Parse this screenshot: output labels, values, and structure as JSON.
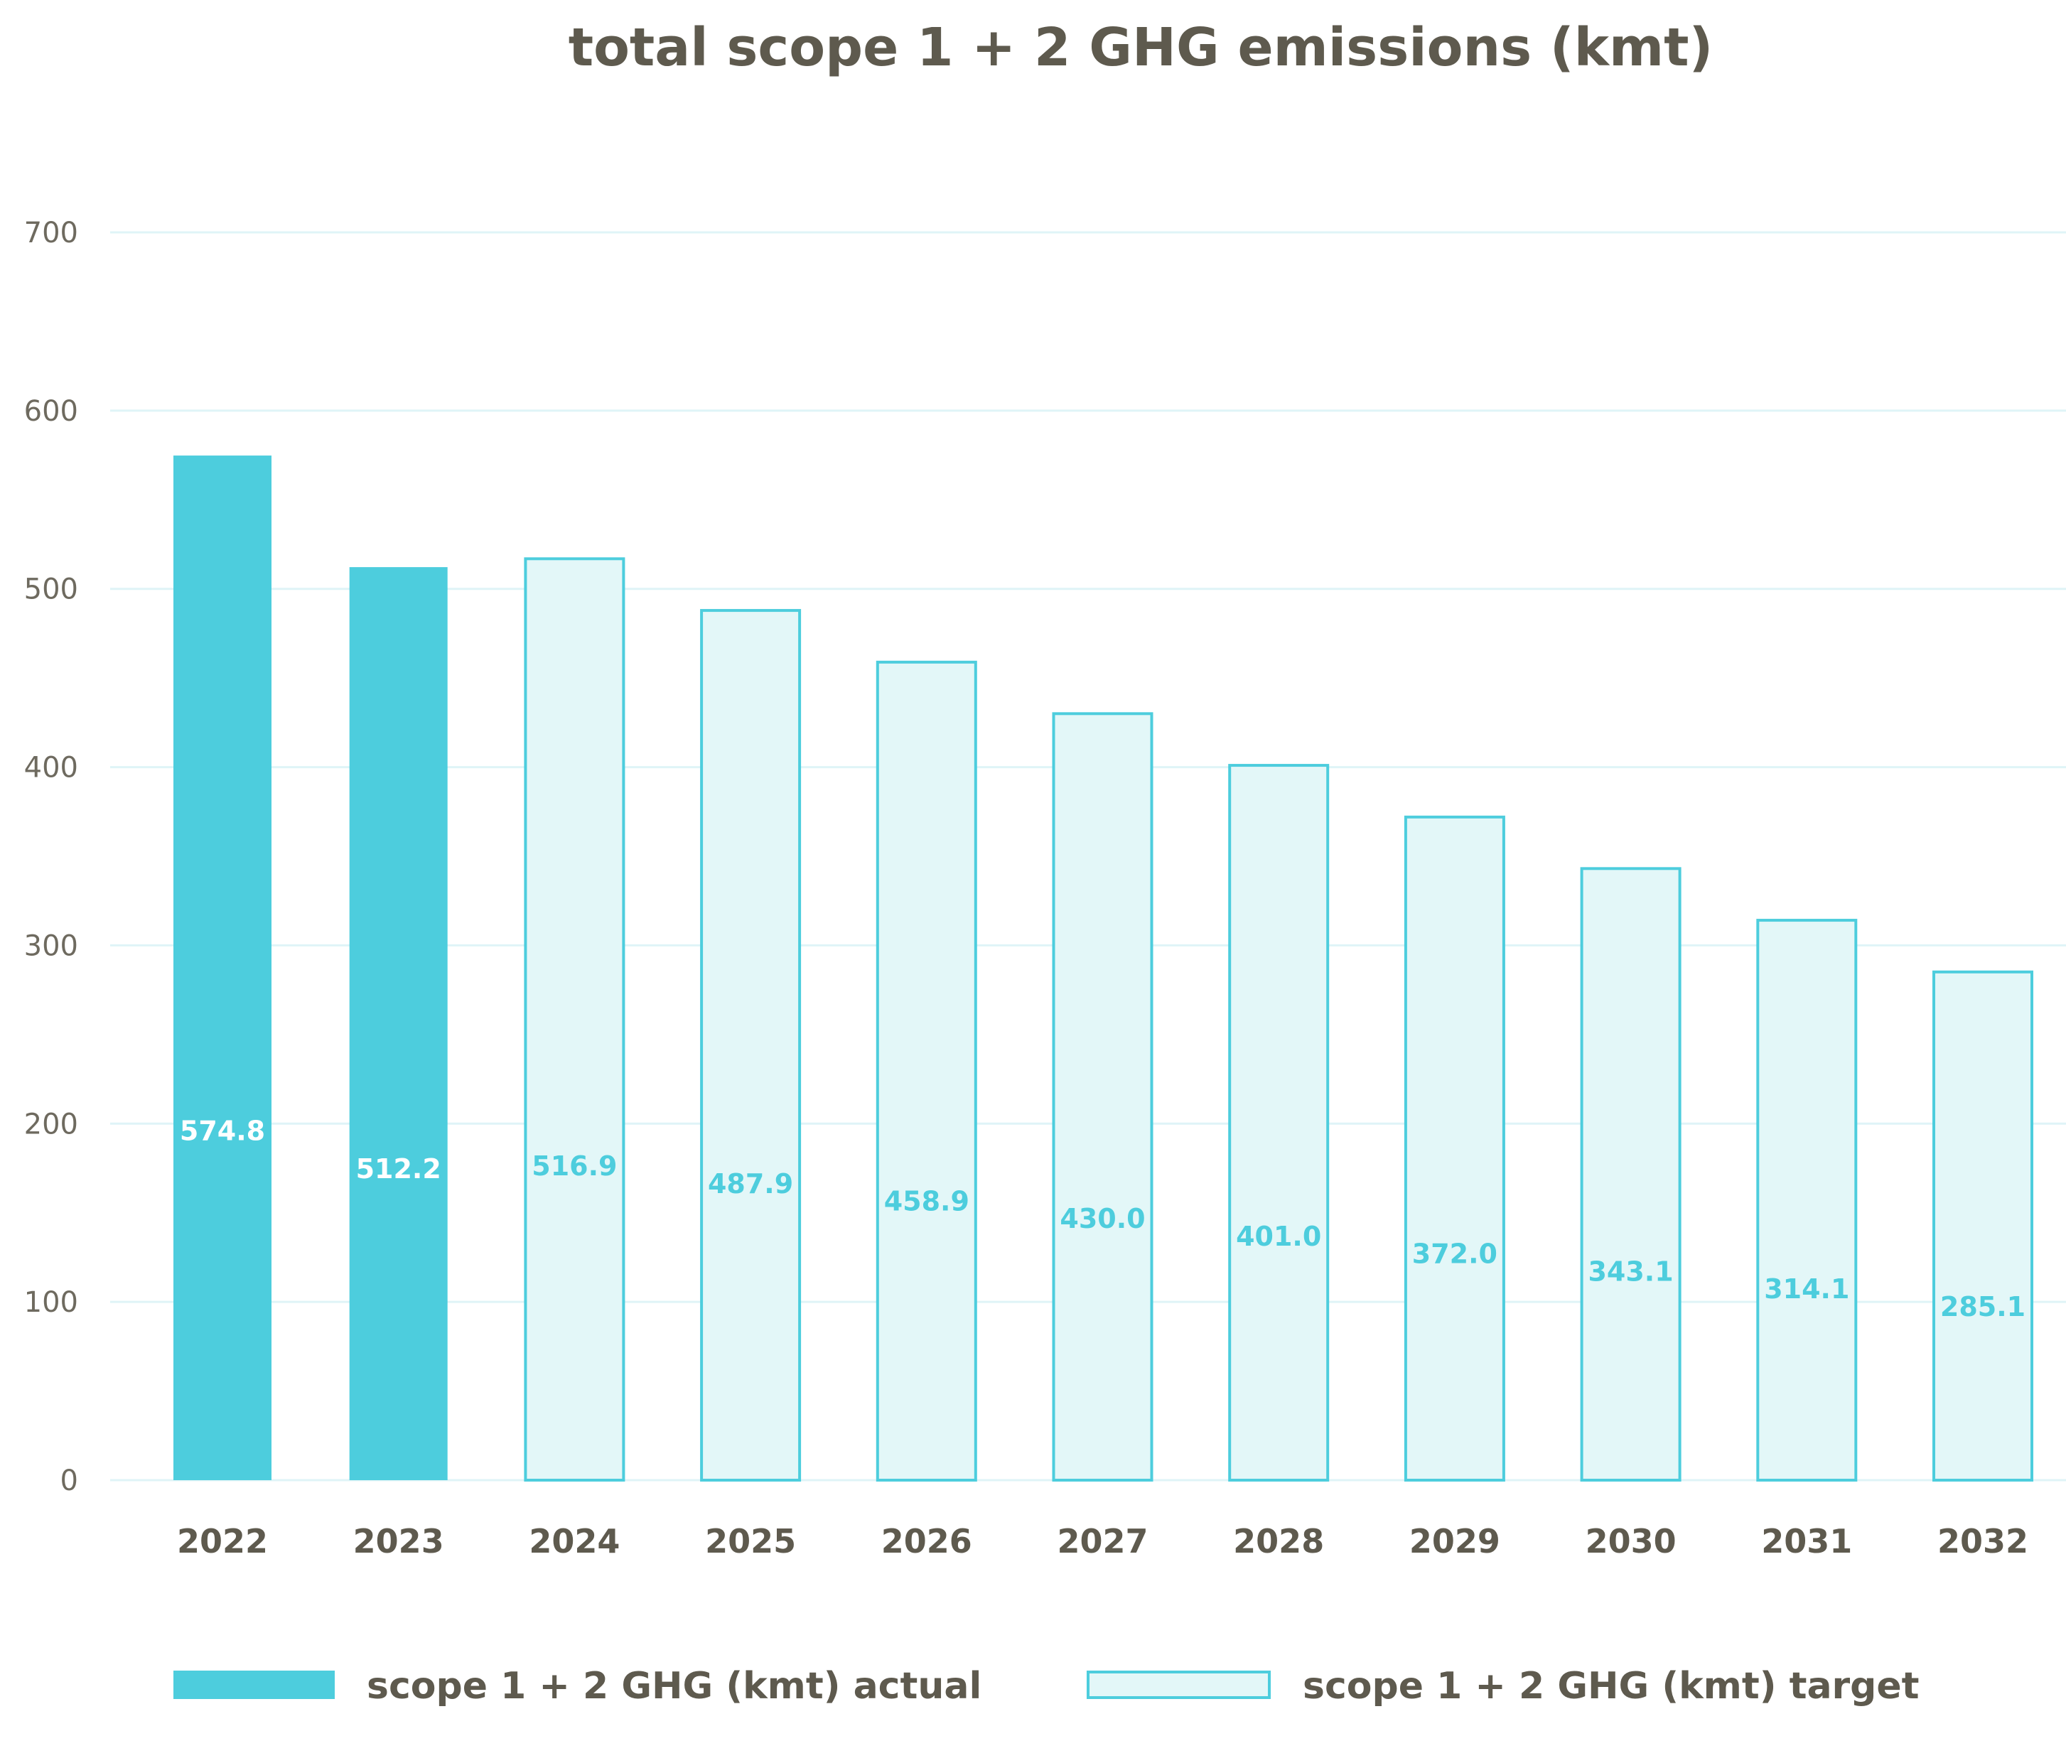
{
  "chart_data": {
    "type": "bar",
    "title": "total scope 1 + 2 GHG emissions (kmt)",
    "xlabel": "",
    "ylabel": "",
    "ylim": [
      0,
      700
    ],
    "yticks": [
      "0",
      "100",
      "200",
      "300",
      "400",
      "500",
      "600",
      "700"
    ],
    "grid": true,
    "legend_position": "bottom",
    "categories": [
      "2022",
      "2023",
      "2024",
      "2025",
      "2026",
      "2027",
      "2028",
      "2029",
      "2030",
      "2031",
      "2032"
    ],
    "series": [
      {
        "name": "scope 1 + 2 GHG (kmt) actual",
        "color": "#4dcddd",
        "values": [
          574.8,
          512.2,
          null,
          null,
          null,
          null,
          null,
          null,
          null,
          null,
          null
        ],
        "labels": [
          "574.8",
          "512.2",
          "",
          "",
          "",
          "",
          "",
          "",
          "",
          "",
          ""
        ]
      },
      {
        "name": "scope 1 + 2 GHG (kmt) target",
        "color": "#e3f7f8",
        "border_color": "#4dcddd",
        "values": [
          null,
          null,
          516.9,
          487.9,
          458.9,
          430.0,
          401.0,
          372.0,
          343.1,
          314.1,
          285.1
        ],
        "labels": [
          "",
          "",
          "516.9",
          "487.9",
          "458.9",
          "430.0",
          "401.0",
          "372.0",
          "343.1",
          "314.1",
          "285.1"
        ]
      }
    ]
  }
}
